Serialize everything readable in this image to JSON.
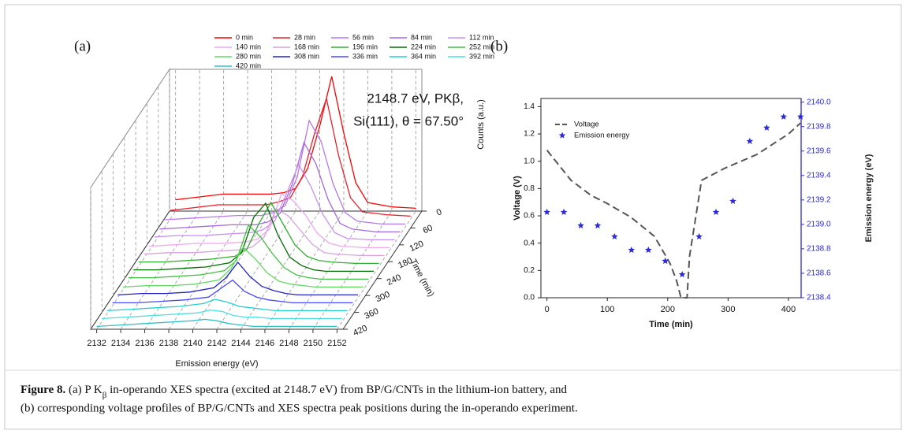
{
  "chart_data": [
    {
      "type": "waterfall",
      "panel_label": "(a)",
      "annotation": [
        "2148.7 eV, PKβ,",
        "Si(111), θ = 67.50°"
      ],
      "x_label": "Emission energy (eV)",
      "y_label": "Counts (a.u.)",
      "z_label": "Time (min)",
      "x": [
        2132,
        2134,
        2136,
        2138,
        2140,
        2141,
        2142,
        2143,
        2144,
        2145,
        2146,
        2147,
        2148,
        2150,
        2152
      ],
      "xlim": [
        2131.5,
        2152.5
      ],
      "xticks": [
        2132,
        2134,
        2136,
        2138,
        2140,
        2142,
        2144,
        2146,
        2148,
        2150,
        2152
      ],
      "ylim": [
        0,
        1
      ],
      "zlim": [
        0,
        420
      ],
      "zticks": [
        0,
        60,
        120,
        180,
        240,
        300,
        360,
        420
      ],
      "grid": true,
      "series": [
        {
          "name": "0 min",
          "time": 0,
          "color": "#ff0000",
          "values": [
            0.08,
            0.1,
            0.12,
            0.12,
            0.12,
            0.13,
            0.16,
            0.3,
            0.6,
            0.95,
            0.55,
            0.2,
            0.06,
            0.03,
            0.02
          ]
        },
        {
          "name": "28 min",
          "time": 28,
          "color": "#e8202a",
          "values": [
            0.06,
            0.08,
            0.1,
            0.1,
            0.1,
            0.12,
            0.15,
            0.3,
            0.6,
            0.85,
            0.45,
            0.15,
            0.05,
            0.03,
            0.02
          ]
        },
        {
          "name": "56 min",
          "time": 56,
          "color": "#b878f0",
          "values": [
            0.05,
            0.06,
            0.07,
            0.08,
            0.08,
            0.1,
            0.15,
            0.35,
            0.75,
            0.6,
            0.3,
            0.1,
            0.04,
            0.02,
            0.02
          ]
        },
        {
          "name": "84 min",
          "time": 84,
          "color": "#a868e0",
          "values": [
            0.04,
            0.05,
            0.06,
            0.07,
            0.07,
            0.09,
            0.15,
            0.35,
            0.65,
            0.5,
            0.25,
            0.08,
            0.04,
            0.02,
            0.02
          ]
        },
        {
          "name": "112 min",
          "time": 112,
          "color": "#c890f0",
          "values": [
            0.04,
            0.05,
            0.05,
            0.06,
            0.07,
            0.09,
            0.15,
            0.35,
            0.55,
            0.4,
            0.2,
            0.07,
            0.03,
            0.02,
            0.02
          ]
        },
        {
          "name": "140 min",
          "time": 140,
          "color": "#f0a8f0",
          "values": [
            0.03,
            0.04,
            0.05,
            0.05,
            0.06,
            0.08,
            0.15,
            0.4,
            0.35,
            0.25,
            0.12,
            0.05,
            0.03,
            0.02,
            0.02
          ]
        },
        {
          "name": "168 min",
          "time": 168,
          "color": "#d8a0e0",
          "values": [
            0.03,
            0.04,
            0.04,
            0.05,
            0.06,
            0.08,
            0.15,
            0.35,
            0.3,
            0.2,
            0.1,
            0.04,
            0.03,
            0.02,
            0.02
          ]
        },
        {
          "name": "196 min",
          "time": 196,
          "color": "#30b030",
          "values": [
            0.03,
            0.03,
            0.04,
            0.05,
            0.07,
            0.12,
            0.3,
            0.45,
            0.3,
            0.15,
            0.07,
            0.04,
            0.03,
            0.02,
            0.02
          ]
        },
        {
          "name": "224 min",
          "time": 224,
          "color": "#006e00",
          "values": [
            0.03,
            0.03,
            0.04,
            0.05,
            0.08,
            0.15,
            0.4,
            0.5,
            0.28,
            0.12,
            0.06,
            0.03,
            0.02,
            0.02,
            0.02
          ]
        },
        {
          "name": "252 min",
          "time": 252,
          "color": "#40c040",
          "values": [
            0.03,
            0.03,
            0.04,
            0.05,
            0.08,
            0.15,
            0.4,
            0.32,
            0.2,
            0.1,
            0.05,
            0.03,
            0.02,
            0.02,
            0.02
          ]
        },
        {
          "name": "280 min",
          "time": 280,
          "color": "#60d860",
          "values": [
            0.02,
            0.03,
            0.03,
            0.04,
            0.07,
            0.15,
            0.3,
            0.22,
            0.12,
            0.06,
            0.04,
            0.03,
            0.02,
            0.02,
            0.02
          ]
        },
        {
          "name": "308 min",
          "time": 308,
          "color": "#2020c8",
          "values": [
            0.02,
            0.03,
            0.03,
            0.04,
            0.07,
            0.14,
            0.25,
            0.15,
            0.08,
            0.05,
            0.03,
            0.02,
            0.02,
            0.02,
            0.02
          ]
        },
        {
          "name": "336 min",
          "time": 336,
          "color": "#4848ff",
          "values": [
            0.02,
            0.02,
            0.03,
            0.04,
            0.06,
            0.12,
            0.18,
            0.1,
            0.06,
            0.04,
            0.03,
            0.02,
            0.02,
            0.02,
            0.02
          ]
        },
        {
          "name": "364 min",
          "time": 364,
          "color": "#20d0d0",
          "values": [
            0.02,
            0.03,
            0.04,
            0.05,
            0.07,
            0.1,
            0.08,
            0.05,
            0.04,
            0.03,
            0.02,
            0.02,
            0.02,
            0.02,
            0.02
          ]
        },
        {
          "name": "392 min",
          "time": 392,
          "color": "#48e0e0",
          "values": [
            0.02,
            0.03,
            0.04,
            0.05,
            0.06,
            0.08,
            0.07,
            0.04,
            0.03,
            0.03,
            0.02,
            0.02,
            0.02,
            0.02,
            0.02
          ]
        },
        {
          "name": "420 min",
          "time": 420,
          "color": "#30c0c8",
          "values": [
            0.02,
            0.03,
            0.04,
            0.05,
            0.06,
            0.07,
            0.06,
            0.04,
            0.03,
            0.02,
            0.02,
            0.02,
            0.02,
            0.02,
            0.02
          ]
        }
      ]
    },
    {
      "type": "combo",
      "panel_label": "(b)",
      "x_label": "Time (min)",
      "y_label": "Voltage (V)",
      "y2_label": "Emission energy (eV)",
      "xlim": [
        -10,
        421
      ],
      "xticks": [
        0,
        100,
        200,
        300,
        400
      ],
      "ylim": [
        0,
        1.46
      ],
      "yticks": [
        {
          "value": 0,
          "label": "0.0"
        },
        0.2,
        0.4,
        0.6,
        0.8,
        {
          "value": 1,
          "label": "1.0"
        },
        1.2,
        1.4
      ],
      "y2lim": [
        2138.4,
        2140.03
      ],
      "y2ticks": [
        2138.4,
        2138.6,
        2138.8,
        {
          "value": 2139,
          "label": "2139.0"
        },
        2139.2,
        2139.4,
        2139.6,
        2139.8,
        {
          "value": 2140,
          "label": "2140.0"
        }
      ],
      "legend": "upper left",
      "series": [
        {
          "name": "Voltage",
          "type": "line",
          "dashed": true,
          "color": "#555555",
          "x": [
            0,
            20,
            40,
            73,
            100,
            139,
            178,
            204,
            215,
            222,
            232,
            236,
            256,
            295,
            348,
            400,
            420
          ],
          "values": [
            1.08,
            0.97,
            0.86,
            0.75,
            0.69,
            0.59,
            0.45,
            0.25,
            0.12,
            0,
            0,
            0.3,
            0.86,
            0.95,
            1.05,
            1.2,
            1.28
          ]
        },
        {
          "name": "Emission energy",
          "type": "scatter",
          "marker": "star",
          "axis": "y2",
          "color": "#2b2bdc",
          "x": [
            0,
            28,
            56,
            84,
            112,
            140,
            168,
            196,
            224,
            252,
            280,
            308,
            336,
            364,
            392,
            420
          ],
          "values": [
            2139.1,
            2139.1,
            2138.99,
            2138.99,
            2138.9,
            2138.79,
            2138.79,
            2138.7,
            2138.59,
            2138.9,
            2139.1,
            2139.19,
            2139.68,
            2139.79,
            2139.88,
            2139.88
          ]
        }
      ]
    }
  ],
  "caption": {
    "label": "Figure 8.",
    "line1": [
      "(a) P K",
      "β",
      " in-operando XES spectra (excited at 2148.7 eV) from BP/G/CNTs in the lithium-ion battery, and"
    ],
    "line2": "(b) corresponding voltage profiles of BP/G/CNTs and XES spectra peak positions during the in-operando experiment."
  }
}
